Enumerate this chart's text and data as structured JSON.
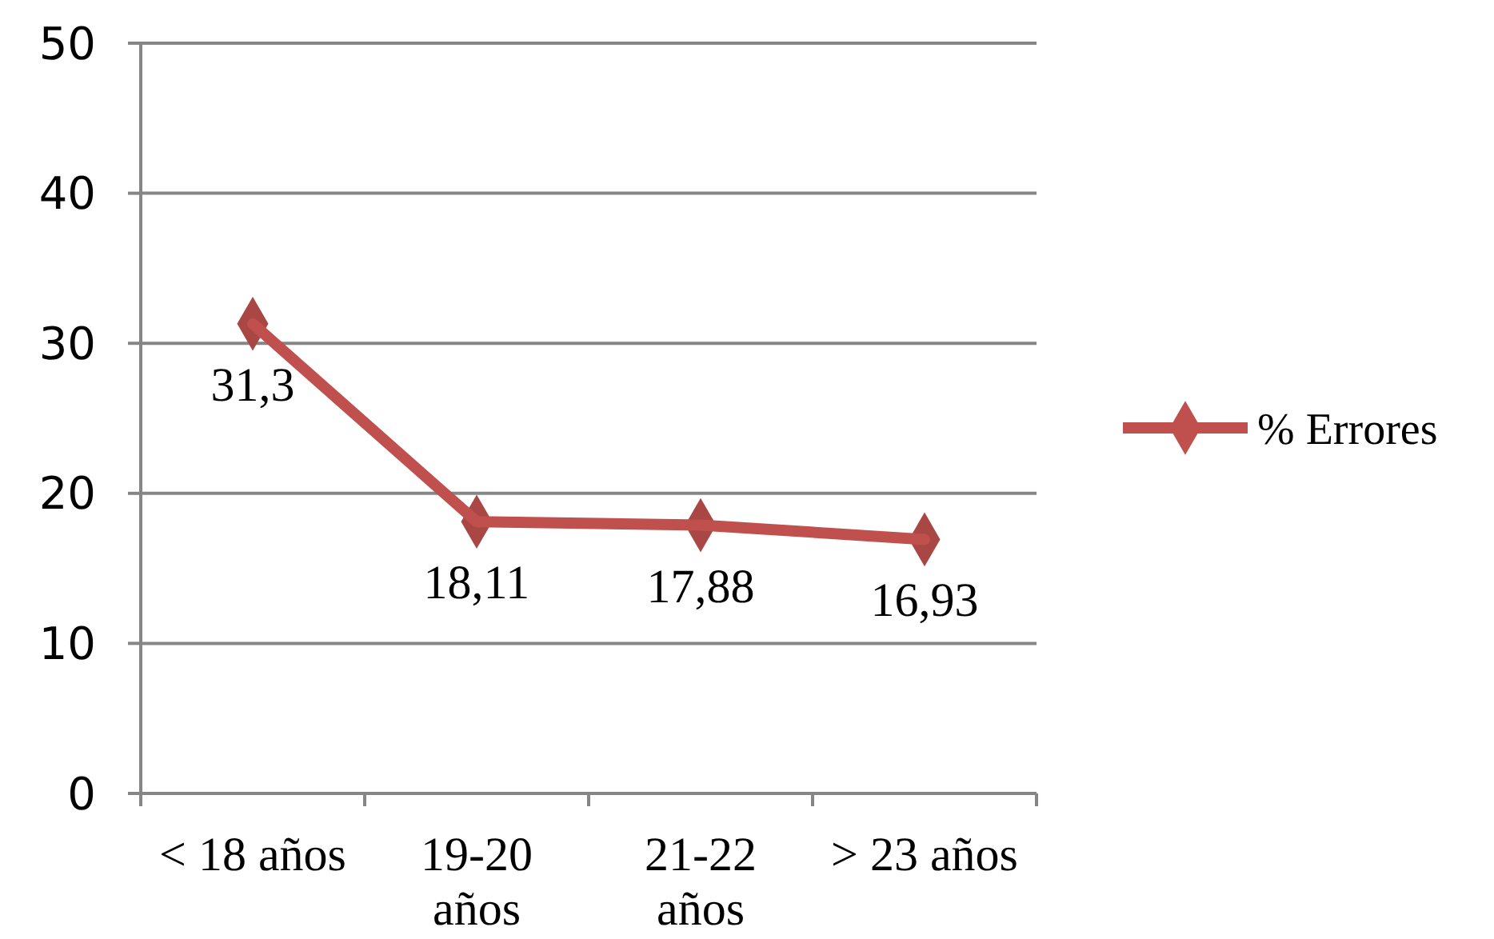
{
  "chart_data": {
    "type": "line",
    "categories": [
      "< 18 años",
      "19-20 años",
      "21-22 años",
      "> 23 años"
    ],
    "series": [
      {
        "name": "%  Errores",
        "color": "#c0504d",
        "values": [
          31.3,
          18.11,
          17.88,
          16.93
        ],
        "value_labels": [
          "31,3",
          "18,11",
          "17,88",
          "16,93"
        ]
      }
    ],
    "ylim": [
      0,
      50
    ],
    "yticks": [
      0,
      10,
      20,
      30,
      40,
      50
    ],
    "grid": "y",
    "legend": "right",
    "marker": "diamond",
    "line_style": "solid"
  }
}
